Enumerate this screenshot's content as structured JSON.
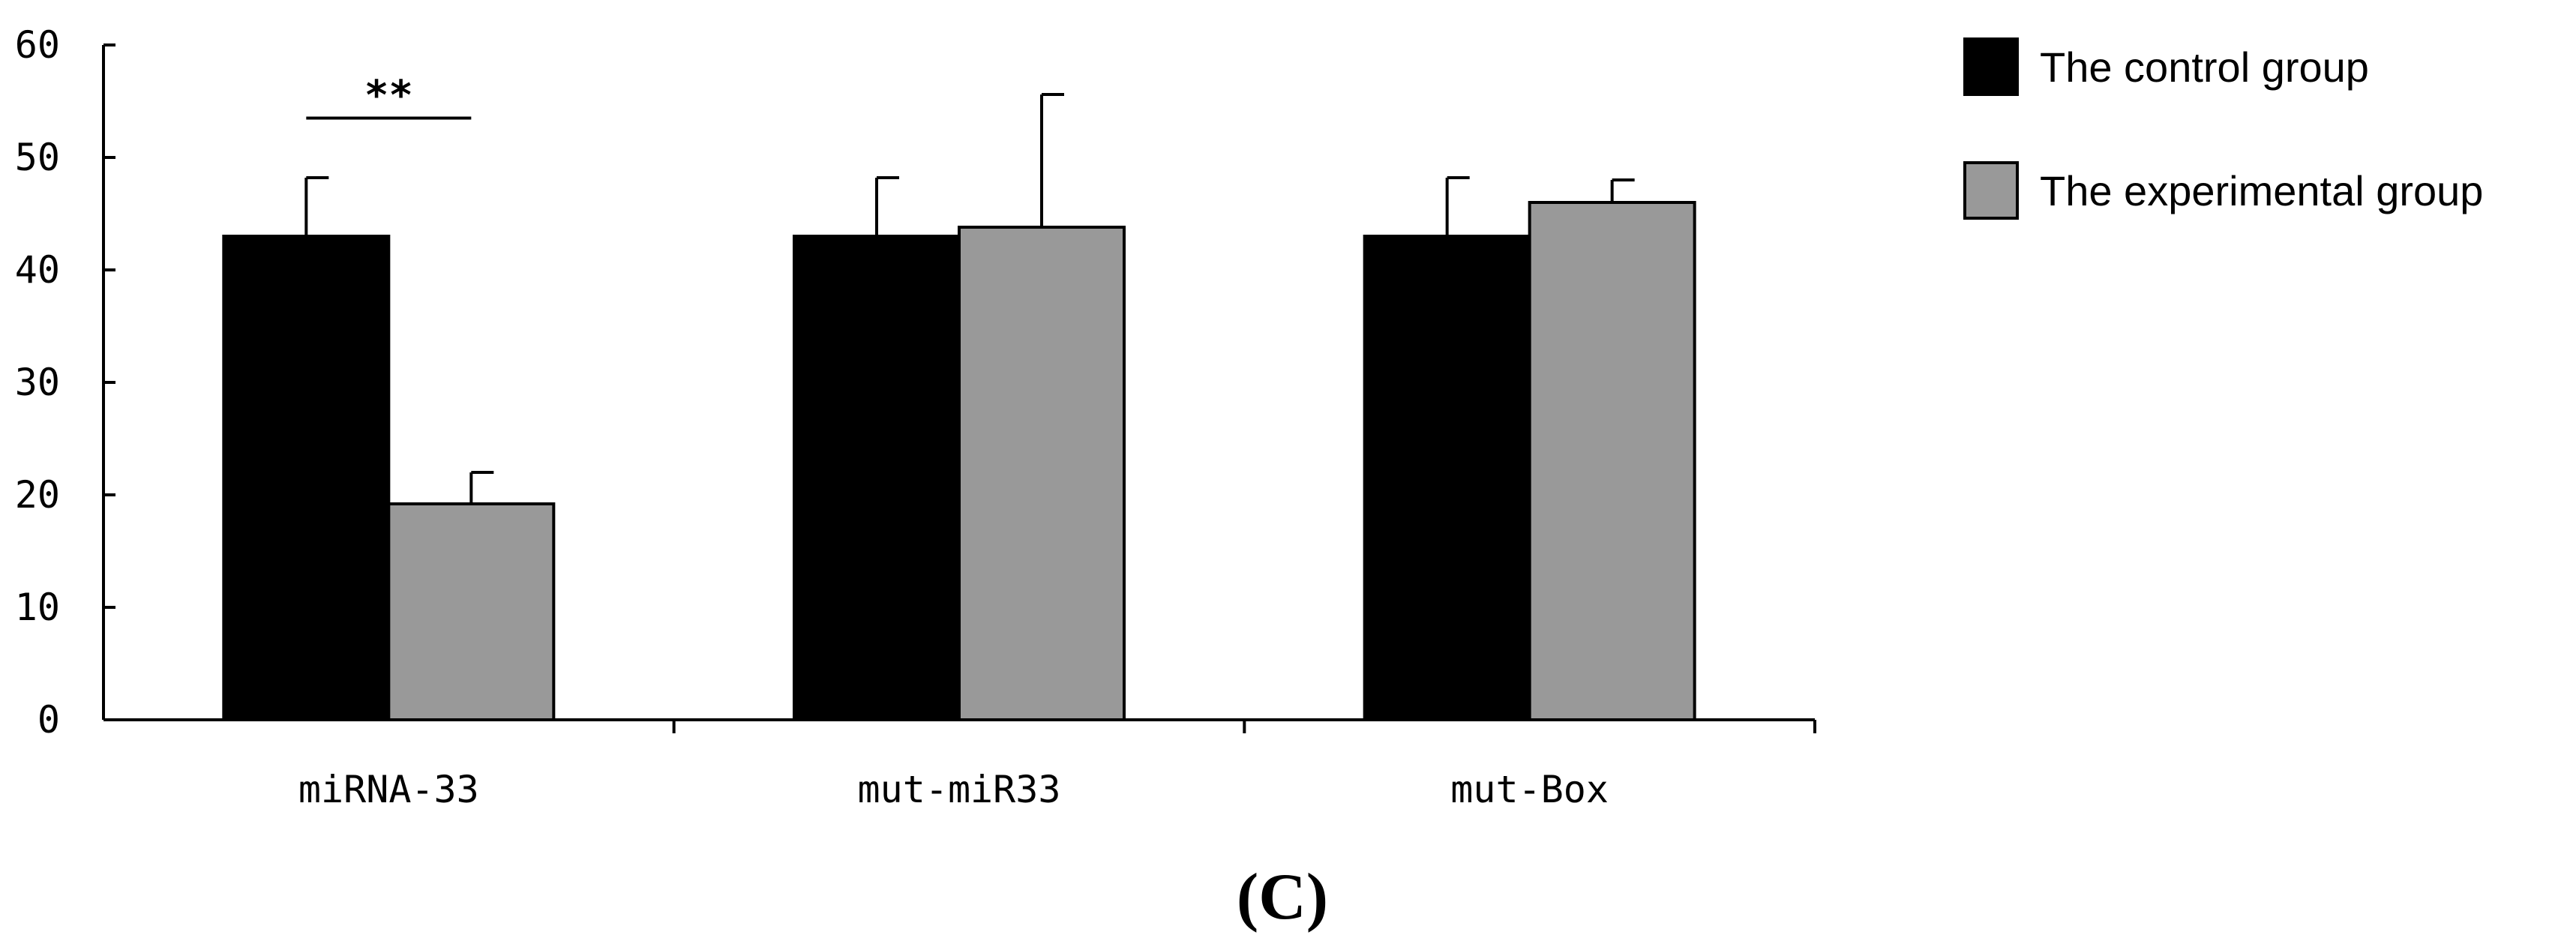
{
  "chart_data": {
    "type": "bar",
    "title": "",
    "xlabel": "",
    "ylabel": "",
    "ylim": [
      0,
      60
    ],
    "yticks": [
      0,
      10,
      20,
      30,
      40,
      50,
      60
    ],
    "categories": [
      "miRNA-33",
      "mut-miR33",
      "mut-Box"
    ],
    "series": [
      {
        "name": "The control group",
        "color": "#000000",
        "values": [
          43,
          43,
          43
        ],
        "errors": [
          5.2,
          5.2,
          5.2
        ]
      },
      {
        "name": "The experimental group",
        "color": "#999999",
        "values": [
          19.2,
          43.8,
          46
        ],
        "errors": [
          2.8,
          11.8,
          2
        ]
      }
    ],
    "annotations": [
      {
        "text": "**",
        "category": "miRNA-33",
        "y": 53.5
      }
    ],
    "legend_position": "top-right",
    "grid": false
  },
  "panel_label": "(C)"
}
